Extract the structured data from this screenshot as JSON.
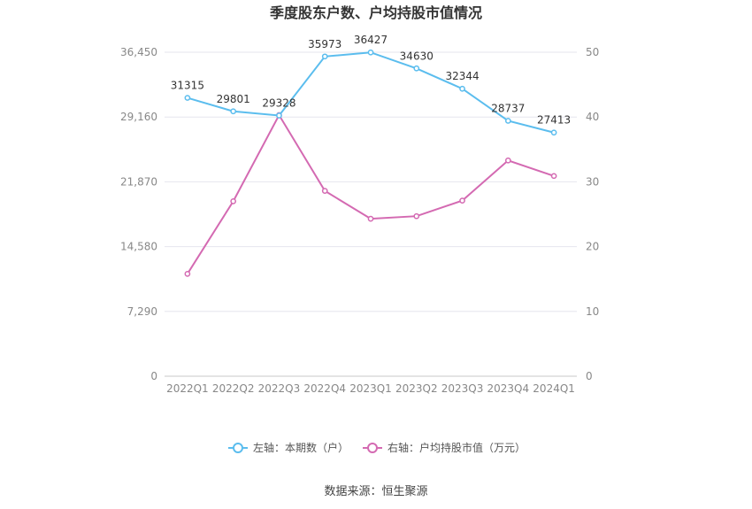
{
  "chart_data": {
    "type": "line",
    "title": "季度股东户数、户均持股市值情况",
    "categories": [
      "2022Q1",
      "2022Q2",
      "2022Q3",
      "2022Q4",
      "2023Q1",
      "2023Q2",
      "2023Q3",
      "2023Q4",
      "2024Q1"
    ],
    "left_axis": {
      "ticks": [
        "0",
        "7,290",
        "14,580",
        "21,870",
        "29,160",
        "36,450"
      ],
      "ylim": [
        0,
        36450
      ]
    },
    "right_axis": {
      "ticks": [
        "0",
        "10",
        "20",
        "30",
        "40",
        "50"
      ],
      "ylim": [
        0,
        50
      ]
    },
    "series": [
      {
        "name": "左轴：本期数（户）",
        "axis": "left",
        "color": "#5bbdee",
        "values": [
          31315,
          29801,
          29328,
          35973,
          36427,
          34630,
          32344,
          28737,
          27413
        ],
        "labels": [
          "31315",
          "29801",
          "29328",
          "35973",
          "36427",
          "34630",
          "32344",
          "28737",
          "27413"
        ]
      },
      {
        "name": "右轴：户均持股市值（万元）",
        "axis": "right",
        "color": "#d46ab2",
        "values": [
          15.8,
          27.0,
          40.3,
          28.6,
          24.3,
          24.7,
          27.1,
          33.3,
          30.9
        ]
      }
    ],
    "grid": true,
    "legend_position": "bottom"
  },
  "source": "数据来源：恒生聚源"
}
